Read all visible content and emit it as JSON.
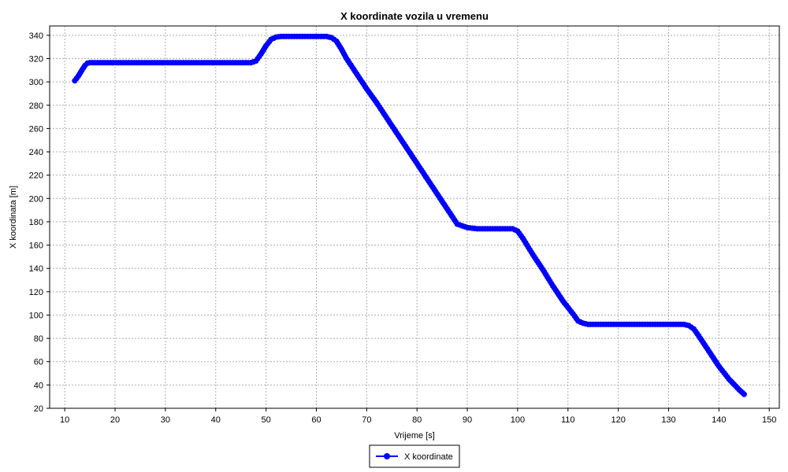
{
  "chart_data": {
    "type": "line",
    "title": "X koordinate vozila u vremenu",
    "xlabel": "Vrijeme [s]",
    "ylabel": "X koordinata [m]",
    "xlim": [
      7,
      152
    ],
    "ylim": [
      20,
      348
    ],
    "xticks": [
      10,
      20,
      30,
      40,
      50,
      60,
      70,
      80,
      90,
      100,
      110,
      120,
      130,
      140,
      150
    ],
    "yticks": [
      20,
      40,
      60,
      80,
      100,
      120,
      140,
      160,
      180,
      200,
      220,
      240,
      260,
      280,
      300,
      320,
      340
    ],
    "grid": true,
    "legend_position": "bottom-center",
    "series": [
      {
        "name": "X koordinate",
        "color": "#0000ff",
        "marker": "circle",
        "x": [
          12,
          12.7,
          13.4,
          14,
          14.5,
          15,
          16,
          47,
          48,
          49,
          50,
          51,
          52,
          53,
          54,
          62,
          63,
          64,
          65,
          66,
          68,
          70,
          72,
          74,
          76,
          78,
          80,
          82,
          84,
          86,
          88,
          90,
          92,
          93,
          99,
          100,
          101,
          103,
          105,
          107,
          109,
          111,
          112,
          113,
          114,
          116,
          133,
          134,
          135,
          136,
          138,
          140,
          142,
          144,
          145
        ],
        "y": [
          301,
          305,
          310,
          314,
          316,
          316.5,
          316.5,
          316.5,
          318,
          324,
          331,
          336.5,
          338.5,
          339,
          339,
          339,
          338,
          335,
          328,
          320,
          307,
          294,
          282,
          269,
          256,
          243,
          230,
          217,
          204,
          191,
          178,
          175,
          174,
          174,
          174,
          172,
          166,
          152,
          139,
          125,
          112,
          101,
          95,
          93,
          92,
          92,
          92,
          91,
          88,
          82,
          69,
          56,
          45,
          36,
          32
        ]
      }
    ]
  }
}
